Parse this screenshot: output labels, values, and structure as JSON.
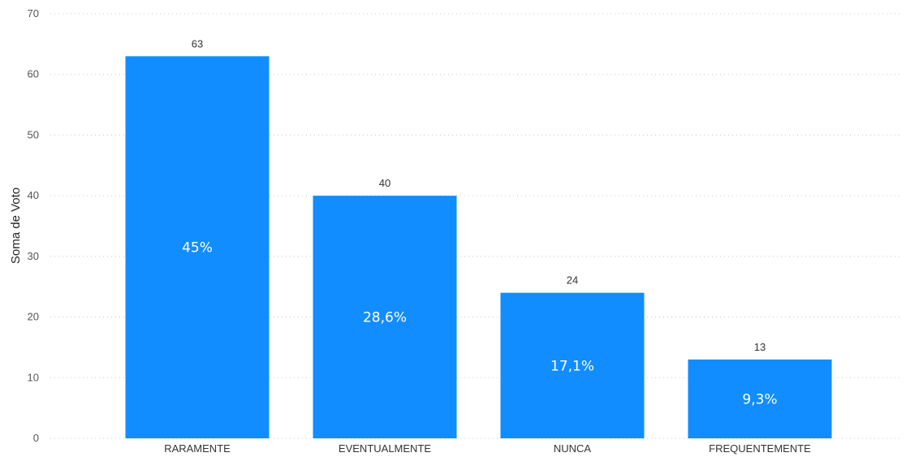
{
  "chart_data": {
    "type": "bar",
    "categories": [
      "RARAMENTE",
      "EVENTUALMENTE",
      "NUNCA",
      "FREQUENTEMENTE"
    ],
    "values": [
      63,
      40,
      24,
      13
    ],
    "percent_labels": [
      "45%",
      "28,6%",
      "17,1%",
      "9,3%"
    ],
    "ylabel": "Soma de Voto",
    "ylim": [
      0,
      70
    ],
    "yticks": [
      0,
      10,
      20,
      30,
      40,
      50,
      60,
      70
    ],
    "grid": true,
    "bar_color": "#118DFF",
    "legend": "none"
  }
}
